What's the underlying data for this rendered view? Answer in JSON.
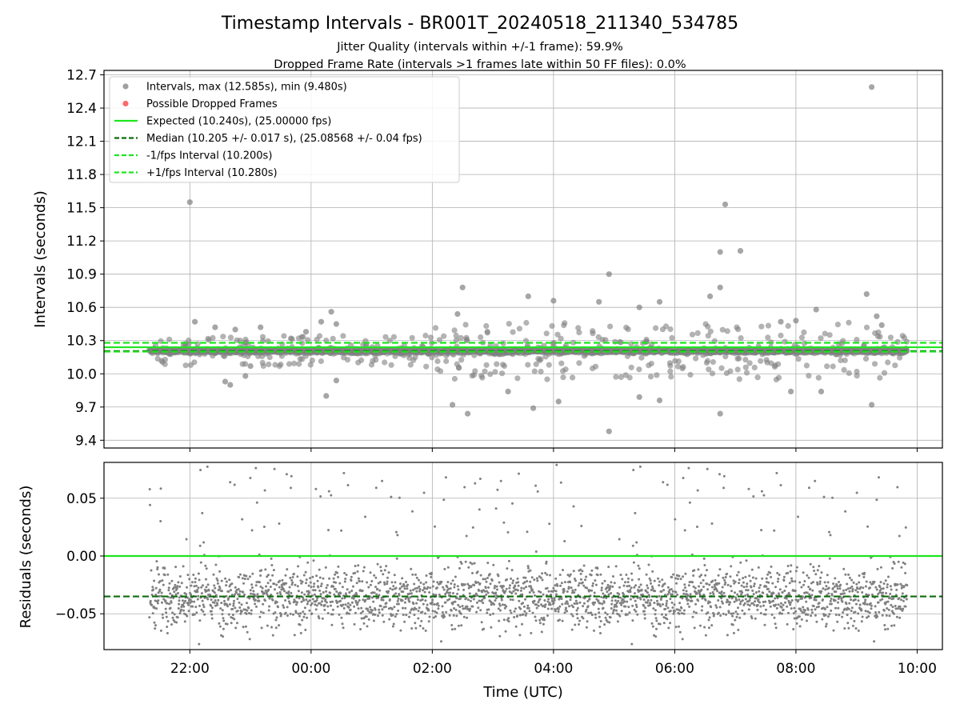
{
  "title": "Timestamp Intervals - BR001T_20240518_211340_534785",
  "subtitle_1": "Jitter Quality (intervals within +/-1 frame): 59.9%",
  "subtitle_2": "Dropped Frame Rate (intervals >1 frames late within 50 FF files): 0.0%",
  "colors": {
    "points": "#808080",
    "dropped": "#ff6a6a",
    "expected": "#1ee61e",
    "median": "#0d6b0d",
    "grid": "#b0b0b0"
  },
  "chart_data": [
    {
      "type": "scatter",
      "ylabel": "Intervals (seconds)",
      "ylim": [
        9.33,
        12.74
      ],
      "yticks": [
        9.4,
        9.7,
        10.0,
        10.3,
        10.6,
        10.9,
        11.2,
        11.5,
        11.8,
        12.1,
        12.4,
        12.7
      ],
      "ytick_labels": [
        "9.4",
        "9.7",
        "10.0",
        "10.3",
        "10.6",
        "10.9",
        "11.2",
        "11.5",
        "11.8",
        "12.1",
        "12.4",
        "12.7"
      ],
      "grid": true,
      "legend_position": "top-left",
      "legend": [
        {
          "label": "Intervals, max (12.585s), min (9.480s)",
          "kind": "marker",
          "color": "#a0a0a0"
        },
        {
          "label": "Possible Dropped Frames",
          "kind": "marker",
          "color": "#ff6a6a"
        },
        {
          "label": "Expected (10.240s), (25.00000 fps)",
          "kind": "solid",
          "color": "#1ee61e"
        },
        {
          "label": "Median (10.205 +/- 0.017 s), (25.08568 +/- 0.04 fps)",
          "kind": "dashed",
          "color": "#0d6b0d"
        },
        {
          "label": "-1/fps Interval (10.200s)",
          "kind": "dashed",
          "color": "#1ee61e"
        },
        {
          "label": "+1/fps Interval (10.280s)",
          "kind": "dashed",
          "color": "#1ee61e"
        }
      ],
      "hlines": [
        {
          "name": "expected",
          "y": 10.24,
          "style": "solid",
          "color": "#1ee61e"
        },
        {
          "name": "median",
          "y": 10.205,
          "style": "dashed",
          "color": "#0d6b0d"
        },
        {
          "name": "minus-1fps",
          "y": 10.2,
          "style": "dashed",
          "color": "#1ee61e"
        },
        {
          "name": "plus-1fps",
          "y": 10.28,
          "style": "dashed",
          "color": "#1ee61e"
        }
      ],
      "outliers": [
        {
          "x": "22:00",
          "y": 11.55
        },
        {
          "x": "22:05",
          "y": 10.47
        },
        {
          "x": "22:25",
          "y": 10.42
        },
        {
          "x": "22:45",
          "y": 10.4
        },
        {
          "x": "23:10",
          "y": 10.42
        },
        {
          "x": "23:40",
          "y": 10.32
        },
        {
          "x": "23:55",
          "y": 10.38
        },
        {
          "x": "00:10",
          "y": 10.47
        },
        {
          "x": "00:20",
          "y": 10.56
        },
        {
          "x": "00:25",
          "y": 10.45
        },
        {
          "x": "22:40",
          "y": 9.9
        },
        {
          "x": "22:35",
          "y": 9.93
        },
        {
          "x": "22:55",
          "y": 9.98
        },
        {
          "x": "23:00",
          "y": 10.07
        },
        {
          "x": "00:15",
          "y": 9.8
        },
        {
          "x": "00:25",
          "y": 9.94
        },
        {
          "x": "02:20",
          "y": 9.72
        },
        {
          "x": "02:25",
          "y": 10.54
        },
        {
          "x": "02:30",
          "y": 10.78
        },
        {
          "x": "02:35",
          "y": 9.64
        },
        {
          "x": "03:15",
          "y": 9.84
        },
        {
          "x": "03:35",
          "y": 10.7
        },
        {
          "x": "03:40",
          "y": 9.69
        },
        {
          "x": "04:00",
          "y": 10.66
        },
        {
          "x": "04:05",
          "y": 9.75
        },
        {
          "x": "04:45",
          "y": 10.65
        },
        {
          "x": "04:55",
          "y": 10.9
        },
        {
          "x": "04:55",
          "y": 9.48
        },
        {
          "x": "05:25",
          "y": 10.6
        },
        {
          "x": "05:25",
          "y": 9.79
        },
        {
          "x": "05:45",
          "y": 10.65
        },
        {
          "x": "05:45",
          "y": 9.76
        },
        {
          "x": "06:35",
          "y": 10.7
        },
        {
          "x": "06:45",
          "y": 10.78
        },
        {
          "x": "06:45",
          "y": 11.1
        },
        {
          "x": "06:50",
          "y": 11.53
        },
        {
          "x": "06:45",
          "y": 9.64
        },
        {
          "x": "07:05",
          "y": 11.11
        },
        {
          "x": "07:45",
          "y": 10.47
        },
        {
          "x": "08:00",
          "y": 10.48
        },
        {
          "x": "08:20",
          "y": 10.58
        },
        {
          "x": "07:55",
          "y": 9.84
        },
        {
          "x": "08:25",
          "y": 9.84
        },
        {
          "x": "09:10",
          "y": 10.72
        },
        {
          "x": "09:15",
          "y": 9.72
        },
        {
          "x": "09:15",
          "y": 12.59
        },
        {
          "x": "09:20",
          "y": 10.52
        },
        {
          "x": "09:25",
          "y": 10.44
        }
      ],
      "time_range": [
        "21:20",
        "09:50"
      ]
    },
    {
      "type": "scatter",
      "xlabel": "Time (UTC)",
      "ylabel": "Residuals (seconds)",
      "ylim": [
        -0.081,
        0.081
      ],
      "yticks": [
        -0.05,
        0.0,
        0.05
      ],
      "ytick_labels": [
        "−0.05",
        "0.00",
        "0.05"
      ],
      "xlim": [
        "20:35",
        "10:25"
      ],
      "xticks": [
        "22:00",
        "00:00",
        "02:00",
        "04:00",
        "06:00",
        "08:00",
        "10:00"
      ],
      "grid": true,
      "hlines": [
        {
          "name": "zero",
          "y": 0.0,
          "style": "solid",
          "color": "#1ee61e"
        },
        {
          "name": "median-residual",
          "y": -0.035,
          "style": "dashed",
          "color": "#0d6b0d"
        }
      ],
      "residual_center": -0.035,
      "residual_spread": 0.013
    }
  ]
}
